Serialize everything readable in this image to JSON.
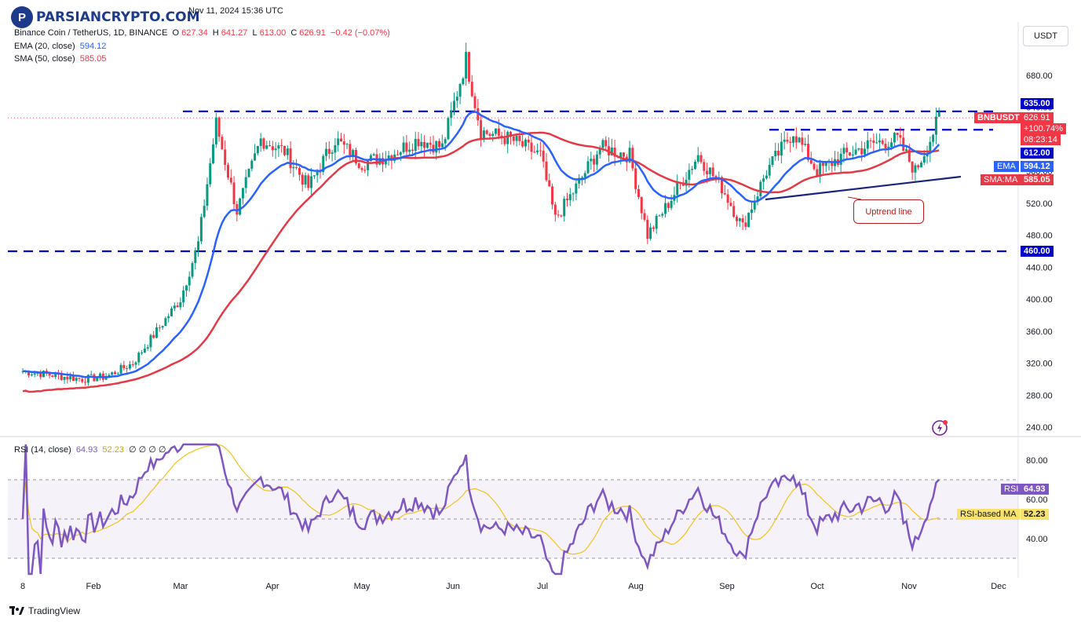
{
  "header": {
    "symbol": "Binance Coin / TetherUS, 1D, BINANCE",
    "date": "Nov 11, 2024 15:36 UTC",
    "open_label": "O",
    "open": "627.34",
    "high_label": "H",
    "high": "641.27",
    "low_label": "L",
    "low": "613.00",
    "close_label": "C",
    "close": "626.91",
    "change": "−0.42 (−0.07%)",
    "ema_label": "EMA (20, close)",
    "ema_value": "594.12",
    "sma_label": "SMA (50, close)",
    "sma_value": "585.05"
  },
  "watermark": {
    "logo_letter": "P",
    "text": "PARSIANCRYPTO.COM"
  },
  "currency_button": "USDT",
  "price_axis": {
    "ticks": [
      "680.00",
      "640.00",
      "600.00",
      "560.00",
      "520.00",
      "480.00",
      "440.00",
      "400.00",
      "360.00",
      "320.00",
      "280.00",
      "240.00"
    ]
  },
  "labels": {
    "level_635": "635.00",
    "level_612": "612.00",
    "level_460": "460.00",
    "symbol_tag": "BNBUSDT",
    "last_price": "626.91",
    "change_pct": "+100.74%",
    "countdown": "08:23:14",
    "ema_tag": "EMA",
    "ema_tag_value": "594.12",
    "sma_tag": "SMA:MA",
    "sma_tag_value": "585.05",
    "uptrend": "Uptrend line"
  },
  "rsi": {
    "label": "RSI (14, close)",
    "value": "64.93",
    "ma_value": "52.23",
    "extra": "∅ ∅ ∅ ∅",
    "ticks": [
      "80.00",
      "60.00",
      "40.00"
    ],
    "tag": "RSI",
    "tag_value": "64.93",
    "ma_tag": "RSI-based MA",
    "ma_tag_value": "52.23"
  },
  "time_axis": [
    "8",
    "Feb",
    "Mar",
    "Apr",
    "May",
    "Jun",
    "Jul",
    "Aug",
    "Sep",
    "Oct",
    "Nov",
    "Dec"
  ],
  "footer": "TradingView",
  "colors": {
    "up": "#089981",
    "down": "#f23645",
    "ema": "#2962ff",
    "sma": "#e53945",
    "level": "#0000cd",
    "rsi": "#7e57c2",
    "rsi_ma": "#f0c419"
  },
  "chart_data": {
    "type": "candlestick",
    "ylim": [
      220,
      720
    ],
    "key_levels": [
      635,
      612,
      460
    ],
    "anchors": [
      {
        "d": "Jan 8",
        "p": 310
      },
      {
        "d": "Jan 18",
        "p": 305
      },
      {
        "d": "Jan 28",
        "p": 300
      },
      {
        "d": "Feb 5",
        "p": 303
      },
      {
        "d": "Feb 14",
        "p": 320
      },
      {
        "d": "Feb 22",
        "p": 360
      },
      {
        "d": "Mar 1",
        "p": 400
      },
      {
        "d": "Mar 7",
        "p": 470
      },
      {
        "d": "Mar 13",
        "p": 620
      },
      {
        "d": "Mar 20",
        "p": 510
      },
      {
        "d": "Mar 28",
        "p": 600
      },
      {
        "d": "Apr 5",
        "p": 585
      },
      {
        "d": "Apr 13",
        "p": 540
      },
      {
        "d": "Apr 22",
        "p": 600
      },
      {
        "d": "May 1",
        "p": 570
      },
      {
        "d": "May 10",
        "p": 580
      },
      {
        "d": "May 20",
        "p": 600
      },
      {
        "d": "May 28",
        "p": 590
      },
      {
        "d": "Jun 5",
        "p": 700
      },
      {
        "d": "Jun 10",
        "p": 610
      },
      {
        "d": "Jun 20",
        "p": 600
      },
      {
        "d": "Jun 30",
        "p": 580
      },
      {
        "d": "Jul 5",
        "p": 500
      },
      {
        "d": "Jul 12",
        "p": 540
      },
      {
        "d": "Jul 20",
        "p": 590
      },
      {
        "d": "Jul 30",
        "p": 580
      },
      {
        "d": "Aug 5",
        "p": 480
      },
      {
        "d": "Aug 12",
        "p": 520
      },
      {
        "d": "Aug 22",
        "p": 580
      },
      {
        "d": "Aug 30",
        "p": 540
      },
      {
        "d": "Sep 6",
        "p": 490
      },
      {
        "d": "Sep 14",
        "p": 560
      },
      {
        "d": "Sep 23",
        "p": 610
      },
      {
        "d": "Oct 1",
        "p": 560
      },
      {
        "d": "Oct 10",
        "p": 580
      },
      {
        "d": "Oct 20",
        "p": 595
      },
      {
        "d": "Oct 28",
        "p": 600
      },
      {
        "d": "Nov 3",
        "p": 560
      },
      {
        "d": "Nov 8",
        "p": 600
      },
      {
        "d": "Nov 11",
        "p": 627
      }
    ]
  }
}
